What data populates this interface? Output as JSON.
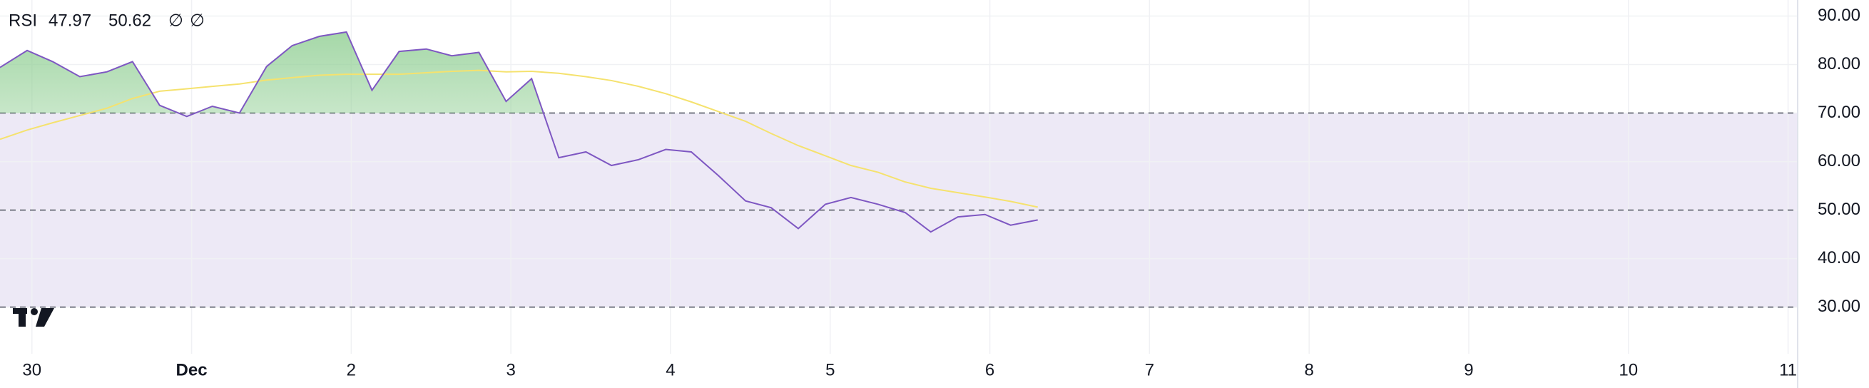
{
  "chart_data": {
    "type": "line",
    "x": [
      -0.2,
      -0.03,
      0.13,
      0.3,
      0.47,
      0.63,
      0.8,
      0.97,
      1.13,
      1.3,
      1.47,
      1.63,
      1.8,
      1.97,
      2.13,
      2.3,
      2.47,
      2.63,
      2.8,
      2.97,
      3.13,
      3.3,
      3.47,
      3.63,
      3.8,
      3.97,
      4.13,
      4.3,
      4.47,
      4.63,
      4.8,
      4.97,
      5.13,
      5.3,
      5.47,
      5.63,
      5.8,
      5.97,
      6.13,
      6.3
    ],
    "series": [
      {
        "name": "RSI",
        "color": "#7e57c2",
        "values": [
          79.4,
          82.9,
          80.6,
          77.5,
          78.5,
          80.6,
          71.6,
          69.3,
          71.4,
          70,
          79.6,
          83.9,
          85.8,
          86.7,
          74.7,
          82.7,
          83.2,
          81.8,
          82.5,
          72.4,
          77.1,
          60.8,
          62,
          59.2,
          60.4,
          62.5,
          62,
          57.1,
          51.9,
          50.5,
          46.2,
          51.2,
          52.6,
          51.2,
          49.5,
          45.5,
          48.6,
          49.1,
          46.9,
          47.97
        ]
      },
      {
        "color": "#f5e26e",
        "values": [
          64.6,
          66.5,
          68,
          69.5,
          71,
          73,
          74.5,
          75,
          75.5,
          76,
          76.8,
          77.3,
          77.8,
          78,
          78,
          78,
          78.3,
          78.6,
          78.8,
          78.5,
          78.6,
          78.2,
          77.5,
          76.7,
          75.5,
          74,
          72.3,
          70.3,
          68.3,
          65.8,
          63.3,
          61.2,
          59.2,
          57.8,
          55.8,
          54.5,
          53.6,
          52.7,
          51.8,
          50.62
        ]
      }
    ],
    "legend_symbols": [
      "∅",
      "∅"
    ],
    "xlim": [
      -0.2,
      11.06
    ],
    "xticks": [
      {
        "value": 0,
        "label": "30"
      },
      {
        "value": 1,
        "label": "Dec"
      },
      2,
      3,
      4,
      5,
      6,
      7,
      8,
      9,
      10,
      11
    ],
    "ylim": [
      20.4,
      93.3
    ],
    "yticks": [
      {
        "value": 30,
        "label": "30.00"
      },
      {
        "value": 40,
        "label": "40.00"
      },
      {
        "value": 50,
        "label": "50.00"
      },
      {
        "value": 60,
        "label": "60.00"
      },
      {
        "value": 70,
        "label": "70.00"
      },
      {
        "value": 80,
        "label": "80.00"
      },
      {
        "value": 90,
        "label": "90.00"
      }
    ],
    "band": [
      30,
      70
    ],
    "band_color": "#ede9f6",
    "levels": [
      70,
      50,
      30
    ],
    "overbought_fill": "#8fce92",
    "grid": true
  }
}
